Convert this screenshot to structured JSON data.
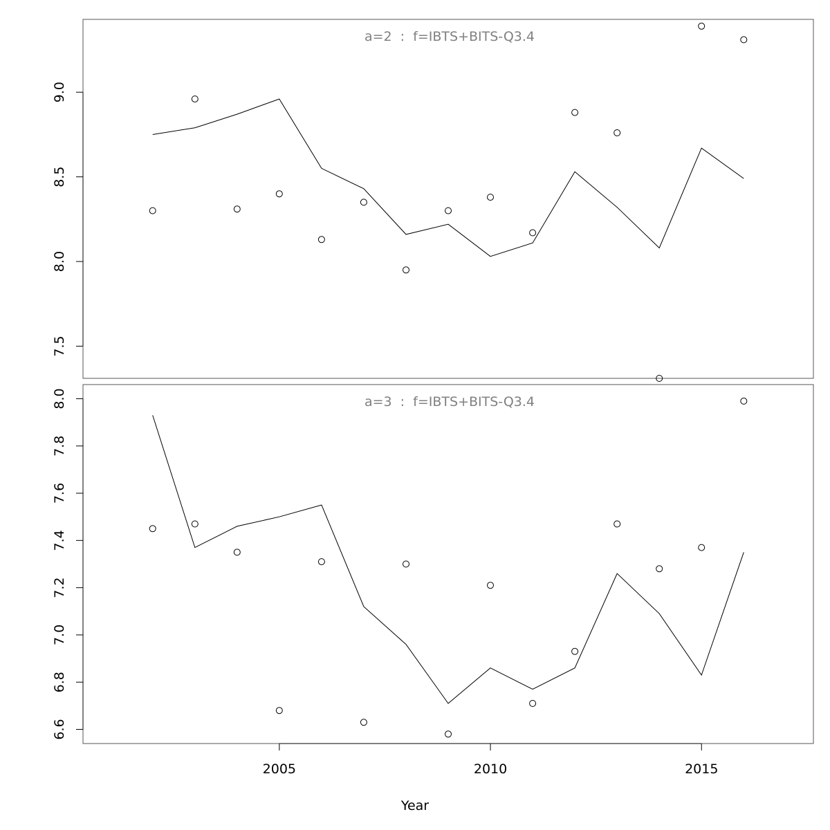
{
  "chart_data": {
    "type": "line",
    "xlabel": "Year",
    "xlim": [
      2000.35,
      2017.65
    ],
    "x_ticks": [
      2005,
      2010,
      2015
    ],
    "panels": [
      {
        "title": "a=2  :  f=IBTS+BITS-Q3.4",
        "ylim": [
          7.31,
          9.43
        ],
        "y_ticks": [
          7.5,
          8.0,
          8.5,
          9.0
        ],
        "y_tick_labels": [
          "7.5",
          "8.0",
          "8.5",
          "9.0"
        ],
        "series": [
          {
            "kind": "line",
            "x": [
              2002,
              2003,
              2004,
              2005,
              2006,
              2007,
              2008,
              2009,
              2010,
              2011,
              2012,
              2013,
              2014,
              2015,
              2016
            ],
            "values": [
              8.75,
              8.79,
              8.87,
              8.96,
              8.55,
              8.43,
              8.16,
              8.22,
              8.03,
              8.11,
              8.53,
              8.32,
              8.08,
              8.67,
              8.49
            ]
          },
          {
            "kind": "points",
            "x": [
              2002,
              2003,
              2004,
              2005,
              2006,
              2007,
              2008,
              2009,
              2010,
              2011,
              2012,
              2013,
              2014,
              2015,
              2016
            ],
            "values": [
              8.3,
              8.96,
              8.31,
              8.4,
              8.13,
              8.35,
              7.95,
              8.3,
              8.38,
              8.17,
              8.88,
              8.76,
              7.31,
              9.39,
              9.31
            ]
          }
        ]
      },
      {
        "title": "a=3  :  f=IBTS+BITS-Q3.4",
        "ylim": [
          6.54,
          8.06
        ],
        "y_ticks": [
          6.6,
          6.8,
          7.0,
          7.2,
          7.4,
          7.6,
          7.8,
          8.0
        ],
        "y_tick_labels": [
          "6.6",
          "6.8",
          "7.0",
          "7.2",
          "7.4",
          "7.6",
          "7.8",
          "8.0"
        ],
        "series": [
          {
            "kind": "line",
            "x": [
              2002,
              2003,
              2004,
              2005,
              2006,
              2007,
              2008,
              2009,
              2010,
              2011,
              2012,
              2013,
              2014,
              2015,
              2016
            ],
            "values": [
              7.93,
              7.37,
              7.46,
              7.5,
              7.55,
              7.12,
              6.96,
              6.71,
              6.86,
              6.77,
              6.86,
              7.26,
              7.09,
              6.83,
              7.35
            ]
          },
          {
            "kind": "points",
            "x": [
              2002,
              2003,
              2004,
              2005,
              2006,
              2007,
              2008,
              2009,
              2010,
              2011,
              2012,
              2013,
              2014,
              2015,
              2016
            ],
            "values": [
              7.45,
              7.47,
              7.35,
              6.68,
              7.31,
              6.63,
              7.3,
              6.58,
              7.21,
              6.71,
              6.93,
              7.47,
              7.28,
              7.37,
              7.99
            ]
          }
        ]
      }
    ]
  }
}
